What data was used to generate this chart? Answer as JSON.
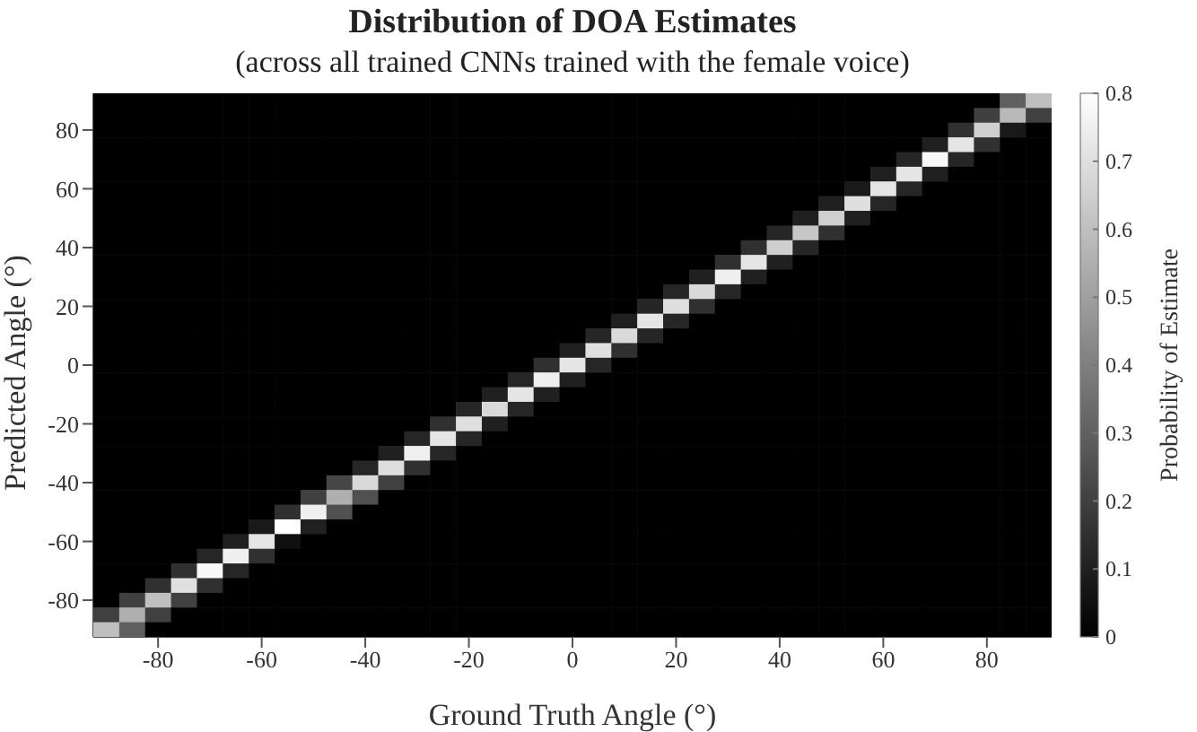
{
  "chart_data": {
    "type": "heatmap",
    "title": "Distribution of DOA Estimates",
    "subtitle": "(across all trained CNNs trained with the female voice)",
    "xlabel": "Ground Truth Angle (°)",
    "ylabel": "Predicted Angle (°)",
    "clabel": "Probability of Estimate",
    "categories": [
      null,
      null,
      "-80",
      null,
      null,
      null,
      "-60",
      null,
      null,
      null,
      "-40",
      null,
      null,
      null,
      "-20",
      null,
      null,
      null,
      "0",
      null,
      null,
      null,
      "20",
      null,
      null,
      null,
      "40",
      null,
      null,
      null,
      "60",
      null,
      null,
      null,
      "80",
      null,
      null
    ],
    "y_categories": [
      null,
      null,
      "80",
      null,
      null,
      null,
      "60",
      null,
      null,
      null,
      "40",
      null,
      null,
      null,
      "20",
      null,
      null,
      null,
      "0",
      null,
      null,
      null,
      "-20",
      null,
      null,
      null,
      "-40",
      null,
      null,
      null,
      "-60",
      null,
      null,
      null,
      "-80",
      null,
      null
    ],
    "clim": [
      0,
      0.8
    ],
    "cticks": [
      0,
      0.1,
      0.2,
      0.3,
      0.4,
      0.5,
      0.6,
      0.7,
      0.8
    ],
    "cells": [
      [
        0,
        0,
        0,
        0,
        0,
        0,
        0,
        0,
        0,
        0,
        0,
        0,
        0,
        0,
        0,
        0,
        0,
        0,
        0,
        0,
        0,
        0,
        0,
        0,
        0,
        0,
        0,
        0,
        0,
        0,
        0,
        0,
        0,
        0,
        0,
        0.3,
        0.6
      ],
      [
        0,
        0,
        0,
        0,
        0,
        0,
        0,
        0,
        0,
        0,
        0,
        0,
        0,
        0,
        0,
        0,
        0,
        0,
        0,
        0,
        0,
        0,
        0,
        0,
        0,
        0,
        0,
        0,
        0,
        0,
        0,
        0,
        0,
        0,
        0.2,
        0.58,
        0.2
      ],
      [
        0,
        0,
        0,
        0,
        0,
        0,
        0,
        0,
        0,
        0,
        0,
        0,
        0,
        0,
        0,
        0,
        0,
        0,
        0,
        0,
        0,
        0,
        0,
        0,
        0,
        0,
        0,
        0,
        0,
        0,
        0,
        0,
        0,
        0.15,
        0.65,
        0.08,
        0
      ],
      [
        0,
        0,
        0,
        0,
        0,
        0,
        0,
        0,
        0,
        0,
        0,
        0,
        0,
        0,
        0,
        0,
        0,
        0,
        0,
        0,
        0,
        0,
        0,
        0,
        0,
        0,
        0,
        0,
        0,
        0,
        0,
        0,
        0.1,
        0.72,
        0.15,
        0,
        0
      ],
      [
        0,
        0,
        0,
        0,
        0,
        0,
        0,
        0,
        0,
        0,
        0,
        0,
        0,
        0,
        0,
        0,
        0,
        0,
        0,
        0,
        0,
        0,
        0,
        0,
        0,
        0,
        0,
        0,
        0,
        0,
        0,
        0.12,
        0.78,
        0.12,
        0,
        0,
        0
      ],
      [
        0,
        0,
        0,
        0,
        0,
        0,
        0,
        0,
        0,
        0,
        0,
        0,
        0,
        0,
        0,
        0,
        0,
        0,
        0,
        0,
        0,
        0,
        0,
        0,
        0,
        0,
        0,
        0,
        0,
        0,
        0.1,
        0.72,
        0.1,
        0,
        0,
        0,
        0
      ],
      [
        0,
        0,
        0,
        0,
        0,
        0,
        0,
        0,
        0,
        0,
        0,
        0,
        0,
        0,
        0,
        0,
        0,
        0,
        0,
        0,
        0,
        0,
        0,
        0,
        0,
        0,
        0,
        0,
        0,
        0.08,
        0.72,
        0.12,
        0,
        0,
        0,
        0,
        0
      ],
      [
        0,
        0,
        0,
        0,
        0,
        0,
        0,
        0,
        0,
        0,
        0,
        0,
        0,
        0,
        0,
        0,
        0,
        0,
        0,
        0,
        0,
        0,
        0,
        0,
        0,
        0,
        0,
        0,
        0.1,
        0.7,
        0.12,
        0,
        0,
        0,
        0,
        0,
        0
      ],
      [
        0,
        0,
        0,
        0,
        0,
        0,
        0,
        0,
        0,
        0,
        0,
        0,
        0,
        0,
        0,
        0,
        0,
        0,
        0,
        0,
        0,
        0,
        0,
        0,
        0,
        0,
        0,
        0.1,
        0.65,
        0.1,
        0,
        0,
        0,
        0,
        0,
        0,
        0
      ],
      [
        0,
        0,
        0,
        0,
        0,
        0,
        0,
        0,
        0,
        0,
        0,
        0,
        0,
        0,
        0,
        0,
        0,
        0,
        0,
        0,
        0,
        0,
        0,
        0,
        0,
        0,
        0.12,
        0.62,
        0.15,
        0,
        0,
        0,
        0,
        0,
        0,
        0,
        0
      ],
      [
        0,
        0,
        0,
        0,
        0,
        0,
        0,
        0,
        0,
        0,
        0,
        0,
        0,
        0,
        0,
        0,
        0,
        0,
        0,
        0,
        0,
        0,
        0,
        0,
        0,
        0.15,
        0.65,
        0.12,
        0,
        0,
        0,
        0,
        0,
        0,
        0,
        0,
        0
      ],
      [
        0,
        0,
        0,
        0,
        0,
        0,
        0,
        0,
        0,
        0,
        0,
        0,
        0,
        0,
        0,
        0,
        0,
        0,
        0,
        0,
        0,
        0,
        0,
        0,
        0.15,
        0.72,
        0.1,
        0,
        0,
        0,
        0,
        0,
        0,
        0,
        0,
        0,
        0
      ],
      [
        0,
        0,
        0,
        0,
        0,
        0,
        0,
        0,
        0,
        0,
        0,
        0,
        0,
        0,
        0,
        0,
        0,
        0,
        0,
        0,
        0,
        0,
        0,
        0.1,
        0.75,
        0.1,
        0,
        0,
        0,
        0,
        0,
        0,
        0,
        0,
        0,
        0,
        0
      ],
      [
        0,
        0,
        0,
        0,
        0,
        0,
        0,
        0,
        0,
        0,
        0,
        0,
        0,
        0,
        0,
        0,
        0,
        0,
        0,
        0,
        0,
        0,
        0.12,
        0.68,
        0.12,
        0,
        0,
        0,
        0,
        0,
        0,
        0,
        0,
        0,
        0,
        0,
        0
      ],
      [
        0,
        0,
        0,
        0,
        0,
        0,
        0,
        0,
        0,
        0,
        0,
        0,
        0,
        0,
        0,
        0,
        0,
        0,
        0,
        0,
        0,
        0.12,
        0.7,
        0.15,
        0,
        0,
        0,
        0,
        0,
        0,
        0,
        0,
        0,
        0,
        0,
        0,
        0
      ],
      [
        0,
        0,
        0,
        0,
        0,
        0,
        0,
        0,
        0,
        0,
        0,
        0,
        0,
        0,
        0,
        0,
        0,
        0,
        0,
        0,
        0.1,
        0.72,
        0.12,
        0,
        0,
        0,
        0,
        0,
        0,
        0,
        0,
        0,
        0,
        0,
        0,
        0,
        0
      ],
      [
        0,
        0,
        0,
        0,
        0,
        0,
        0,
        0,
        0,
        0,
        0,
        0,
        0,
        0,
        0,
        0,
        0,
        0,
        0,
        0.12,
        0.68,
        0.12,
        0,
        0,
        0,
        0,
        0,
        0,
        0,
        0,
        0,
        0,
        0,
        0,
        0,
        0,
        0
      ],
      [
        0,
        0,
        0,
        0,
        0,
        0,
        0,
        0,
        0,
        0,
        0,
        0,
        0,
        0,
        0,
        0,
        0,
        0,
        0.1,
        0.7,
        0.15,
        0,
        0,
        0,
        0,
        0,
        0,
        0,
        0,
        0,
        0,
        0,
        0,
        0,
        0,
        0,
        0
      ],
      [
        0,
        0,
        0,
        0,
        0,
        0,
        0,
        0,
        0,
        0,
        0,
        0,
        0,
        0,
        0,
        0,
        0,
        0.15,
        0.72,
        0.12,
        0,
        0,
        0,
        0,
        0,
        0,
        0,
        0,
        0,
        0,
        0,
        0,
        0,
        0,
        0,
        0,
        0
      ],
      [
        0,
        0,
        0,
        0,
        0,
        0,
        0,
        0,
        0,
        0,
        0,
        0,
        0,
        0,
        0,
        0,
        0.12,
        0.75,
        0.1,
        0,
        0,
        0,
        0,
        0,
        0,
        0,
        0,
        0,
        0,
        0,
        0,
        0,
        0,
        0,
        0,
        0,
        0
      ],
      [
        0,
        0,
        0,
        0,
        0,
        0,
        0,
        0,
        0,
        0,
        0,
        0,
        0,
        0,
        0,
        0.1,
        0.72,
        0.1,
        0,
        0,
        0,
        0,
        0,
        0,
        0,
        0,
        0,
        0,
        0,
        0,
        0,
        0,
        0,
        0,
        0,
        0,
        0
      ],
      [
        0,
        0,
        0,
        0,
        0,
        0,
        0,
        0,
        0,
        0,
        0,
        0,
        0,
        0,
        0.12,
        0.68,
        0.12,
        0,
        0,
        0,
        0,
        0,
        0,
        0,
        0,
        0,
        0,
        0,
        0,
        0,
        0,
        0,
        0,
        0,
        0,
        0,
        0
      ],
      [
        0,
        0,
        0,
        0,
        0,
        0,
        0,
        0,
        0,
        0,
        0,
        0,
        0,
        0.15,
        0.7,
        0.1,
        0,
        0,
        0,
        0,
        0,
        0,
        0,
        0,
        0,
        0,
        0,
        0,
        0,
        0,
        0,
        0,
        0,
        0,
        0,
        0,
        0
      ],
      [
        0,
        0,
        0,
        0,
        0,
        0,
        0,
        0,
        0,
        0,
        0,
        0,
        0.12,
        0.72,
        0.12,
        0,
        0,
        0,
        0,
        0,
        0,
        0,
        0,
        0,
        0,
        0,
        0,
        0,
        0,
        0,
        0,
        0,
        0,
        0,
        0,
        0,
        0
      ],
      [
        0,
        0,
        0,
        0,
        0,
        0,
        0,
        0,
        0,
        0,
        0,
        0.1,
        0.75,
        0.12,
        0,
        0,
        0,
        0,
        0,
        0,
        0,
        0,
        0,
        0,
        0,
        0,
        0,
        0,
        0,
        0,
        0,
        0,
        0,
        0,
        0,
        0,
        0
      ],
      [
        0,
        0,
        0,
        0,
        0,
        0,
        0,
        0,
        0,
        0,
        0.12,
        0.7,
        0.15,
        0,
        0,
        0,
        0,
        0,
        0,
        0,
        0,
        0,
        0,
        0,
        0,
        0,
        0,
        0,
        0,
        0,
        0,
        0,
        0,
        0,
        0,
        0,
        0
      ],
      [
        0,
        0,
        0,
        0,
        0,
        0,
        0,
        0,
        0,
        0.22,
        0.68,
        0.2,
        0,
        0,
        0,
        0,
        0,
        0,
        0,
        0,
        0,
        0,
        0,
        0,
        0,
        0,
        0,
        0,
        0,
        0,
        0,
        0,
        0,
        0,
        0,
        0,
        0
      ],
      [
        0,
        0,
        0,
        0,
        0,
        0,
        0,
        0,
        0.2,
        0.55,
        0.25,
        0,
        0,
        0,
        0,
        0,
        0,
        0,
        0,
        0,
        0,
        0,
        0,
        0,
        0,
        0,
        0,
        0,
        0,
        0,
        0,
        0,
        0,
        0,
        0,
        0,
        0
      ],
      [
        0,
        0,
        0,
        0,
        0,
        0,
        0,
        0.15,
        0.75,
        0.25,
        0,
        0,
        0,
        0,
        0,
        0,
        0,
        0,
        0,
        0,
        0,
        0,
        0,
        0,
        0,
        0,
        0,
        0,
        0,
        0,
        0,
        0,
        0,
        0,
        0,
        0,
        0
      ],
      [
        0,
        0,
        0,
        0,
        0,
        0,
        0.08,
        0.8,
        0.1,
        0,
        0,
        0,
        0,
        0,
        0,
        0,
        0,
        0,
        0,
        0,
        0,
        0,
        0,
        0,
        0,
        0,
        0,
        0,
        0,
        0,
        0,
        0,
        0,
        0,
        0,
        0,
        0
      ],
      [
        0,
        0,
        0,
        0,
        0,
        0.1,
        0.72,
        0.05,
        0,
        0,
        0,
        0,
        0,
        0,
        0,
        0,
        0,
        0,
        0,
        0,
        0,
        0,
        0,
        0,
        0,
        0,
        0,
        0,
        0,
        0,
        0,
        0,
        0,
        0,
        0,
        0,
        0
      ],
      [
        0,
        0,
        0,
        0,
        0.12,
        0.75,
        0.15,
        0,
        0,
        0,
        0,
        0,
        0,
        0,
        0,
        0,
        0,
        0,
        0,
        0,
        0,
        0,
        0,
        0,
        0,
        0,
        0,
        0,
        0,
        0,
        0,
        0,
        0,
        0,
        0,
        0,
        0
      ],
      [
        0,
        0,
        0,
        0.15,
        0.78,
        0.12,
        0,
        0,
        0,
        0,
        0,
        0,
        0,
        0,
        0,
        0,
        0,
        0,
        0,
        0,
        0,
        0,
        0,
        0,
        0,
        0,
        0,
        0,
        0,
        0,
        0,
        0,
        0,
        0,
        0,
        0,
        0
      ],
      [
        0,
        0,
        0.15,
        0.7,
        0.15,
        0,
        0,
        0,
        0,
        0,
        0,
        0,
        0,
        0,
        0,
        0,
        0,
        0,
        0,
        0,
        0,
        0,
        0,
        0,
        0,
        0,
        0,
        0,
        0,
        0,
        0,
        0,
        0,
        0,
        0,
        0,
        0
      ],
      [
        0,
        0.2,
        0.6,
        0.2,
        0,
        0,
        0,
        0,
        0,
        0,
        0,
        0,
        0,
        0,
        0,
        0,
        0,
        0,
        0,
        0,
        0,
        0,
        0,
        0,
        0,
        0,
        0,
        0,
        0,
        0,
        0,
        0,
        0,
        0,
        0,
        0,
        0
      ],
      [
        0.2,
        0.55,
        0.2,
        0,
        0,
        0,
        0,
        0,
        0,
        0,
        0,
        0,
        0,
        0,
        0,
        0,
        0,
        0,
        0,
        0,
        0,
        0,
        0,
        0,
        0,
        0,
        0,
        0,
        0,
        0,
        0,
        0,
        0,
        0,
        0,
        0,
        0
      ],
      [
        0.6,
        0.3,
        0,
        0,
        0,
        0,
        0,
        0,
        0,
        0,
        0,
        0,
        0,
        0,
        0,
        0,
        0,
        0,
        0,
        0,
        0,
        0,
        0,
        0,
        0,
        0,
        0,
        0,
        0,
        0,
        0,
        0,
        0,
        0,
        0,
        0,
        0
      ]
    ]
  }
}
